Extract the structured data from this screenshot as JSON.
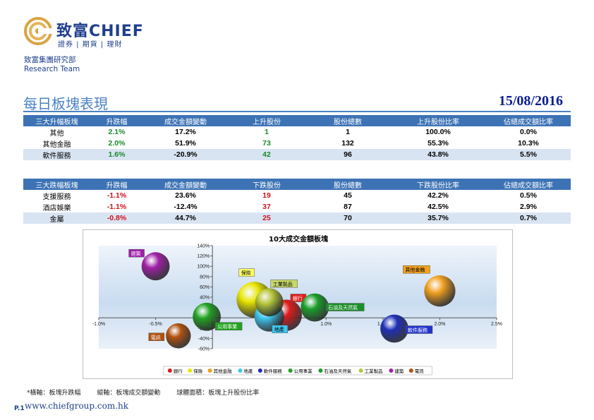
{
  "brand": {
    "name": "致富CHIEF",
    "tagline": "證券 | 期貨 | 理財",
    "department": "致富集團研究部",
    "team": "Research Team"
  },
  "report": {
    "title": "每日板塊表現",
    "date": "15/08/2016"
  },
  "top_table": {
    "headers": [
      "三大升幅板塊",
      "升跌幅",
      "成交金額變動",
      "上升股份",
      "股份總數",
      "上升股份比率",
      "佔總成交額比率"
    ],
    "rows": [
      [
        "其他",
        "2.1%",
        "17.2%",
        "1",
        "1",
        "100.0%",
        "0.0%"
      ],
      [
        "其他金融",
        "2.0%",
        "51.9%",
        "73",
        "132",
        "55.3%",
        "10.3%"
      ],
      [
        "軟件服務",
        "1.6%",
        "-20.9%",
        "42",
        "96",
        "43.8%",
        "5.5%"
      ]
    ]
  },
  "bottom_table": {
    "headers": [
      "三大跌幅板塊",
      "升跌幅",
      "成交金額變動",
      "下跌股份",
      "股份總數",
      "下跌股份比率",
      "佔總成交額比率"
    ],
    "rows": [
      [
        "支援服務",
        "-1.1%",
        "23.6%",
        "19",
        "45",
        "42.2%",
        "0.5%"
      ],
      [
        "酒店娛樂",
        "-1.1%",
        "-12.4%",
        "37",
        "87",
        "42.5%",
        "2.9%"
      ],
      [
        "金屬",
        "-0.8%",
        "44.7%",
        "25",
        "70",
        "35.7%",
        "0.7%"
      ]
    ]
  },
  "colors": {
    "green": "#178a2a",
    "red": "#d0121b",
    "header": "#3d73b5",
    "alt_row": "#d9e4f2"
  },
  "chart_data": {
    "type": "scatter",
    "title": "10大成交金額板塊",
    "x_ticks": [
      "-1.0%",
      "-0.5%",
      "0.0%",
      "0.5%",
      "1.0%",
      "1.5%",
      "2.0%",
      "2.5%"
    ],
    "y_ticks": [
      "140%",
      "120%",
      "100%",
      "80%",
      "60%",
      "40%",
      "20%",
      "0%",
      "-20%",
      "-40%",
      "-60%"
    ],
    "xlim": [
      -1.0,
      2.5
    ],
    "ylim": [
      -60,
      140
    ],
    "series": [
      {
        "name": "銀行",
        "x": 0.65,
        "y": 5,
        "size": 0.55,
        "color": "#e11b1b"
      },
      {
        "name": "保險",
        "x": 0.37,
        "y": 35,
        "size": 0.7,
        "color": "#e8e600"
      },
      {
        "name": "其他金融",
        "x": 2.0,
        "y": 52,
        "size": 0.55,
        "color": "#f2a01e"
      },
      {
        "name": "地產",
        "x": 0.5,
        "y": 2,
        "size": 0.5,
        "color": "#3ec6ef"
      },
      {
        "name": "軟件服務",
        "x": 1.6,
        "y": -21,
        "size": 0.45,
        "color": "#1f2fb8"
      },
      {
        "name": "公用事業",
        "x": -0.05,
        "y": 2,
        "size": 0.45,
        "color": "#22a322"
      },
      {
        "name": "石油及天然氣",
        "x": 0.9,
        "y": 20,
        "size": 0.45,
        "color": "#1b9e2a"
      },
      {
        "name": "工業製品",
        "x": 0.5,
        "y": 30,
        "size": 0.45,
        "color": "#b5c63a"
      },
      {
        "name": "建築",
        "x": -0.5,
        "y": 100,
        "size": 0.45,
        "color": "#a020a8"
      },
      {
        "name": "電訊",
        "x": -0.3,
        "y": -35,
        "size": 0.35,
        "color": "#b2520f"
      }
    ],
    "legend_position": "bottom"
  },
  "footnote": {
    "x_axis": "*橫軸：板塊升跌幅",
    "y_axis": "縱軸：板塊成交額變動",
    "size": "球體面積：板塊上升股份比率"
  },
  "footer": {
    "page": "P.1",
    "website": "www.chiefgroup.com.hk"
  }
}
